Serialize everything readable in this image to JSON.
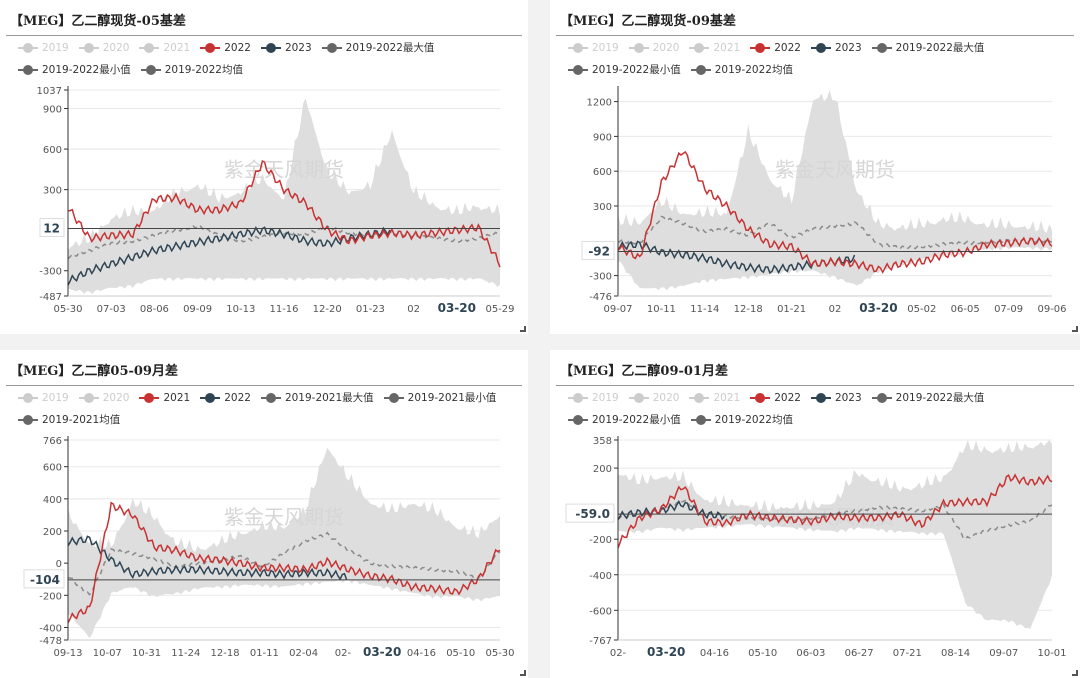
{
  "colors": {
    "y2022": "#c83232",
    "y2023": "#2f4554",
    "mean": "#8a8a8a",
    "band": "#dedede",
    "off": "#cccccc",
    "legend_on": "#666666",
    "grid": "#e8e8e8",
    "axis": "#333333",
    "watermark": "#d6d6d6"
  },
  "watermark": "紫金天风期货",
  "panels": [
    {
      "title": "【MEG】乙二醇现货-05基差",
      "legend": [
        {
          "label": "2019",
          "state": "off"
        },
        {
          "label": "2020",
          "state": "off"
        },
        {
          "label": "2021",
          "state": "off"
        },
        {
          "label": "2022",
          "state": "on",
          "color": "#c83232"
        },
        {
          "label": "2023",
          "state": "on",
          "color": "#2f4554"
        },
        {
          "label": "2019-2022最大值",
          "state": "on",
          "color": "#666666"
        },
        {
          "label": "2019-2022最小值",
          "state": "on",
          "color": "#666666"
        },
        {
          "label": "2019-2022均值",
          "state": "on",
          "color": "#666666"
        }
      ],
      "marker_label": "12",
      "highlight_tick": "03-20"
    },
    {
      "title": "【MEG】乙二醇现货-09基差",
      "legend": [
        {
          "label": "2019",
          "state": "off"
        },
        {
          "label": "2020",
          "state": "off"
        },
        {
          "label": "2021",
          "state": "off"
        },
        {
          "label": "2022",
          "state": "on",
          "color": "#c83232"
        },
        {
          "label": "2023",
          "state": "on",
          "color": "#2f4554"
        },
        {
          "label": "2019-2022最大值",
          "state": "on",
          "color": "#666666"
        },
        {
          "label": "2019-2022最小值",
          "state": "on",
          "color": "#666666"
        },
        {
          "label": "2019-2022均值",
          "state": "on",
          "color": "#666666"
        }
      ],
      "marker_label": "-92",
      "highlight_tick": "03-20"
    },
    {
      "title": "【MEG】乙二醇05-09月差",
      "legend": [
        {
          "label": "2019",
          "state": "off"
        },
        {
          "label": "2020",
          "state": "off"
        },
        {
          "label": "2021",
          "state": "on",
          "color": "#c83232"
        },
        {
          "label": "2022",
          "state": "on",
          "color": "#2f4554"
        },
        {
          "label": "2019-2021最大值",
          "state": "on",
          "color": "#666666"
        },
        {
          "label": "2019-2021最小值",
          "state": "on",
          "color": "#666666"
        },
        {
          "label": "2019-2021均值",
          "state": "on",
          "color": "#666666"
        }
      ],
      "marker_label": "-104",
      "highlight_tick": "03-20"
    },
    {
      "title": "【MEG】乙二醇09-01月差",
      "legend": [
        {
          "label": "2019",
          "state": "off"
        },
        {
          "label": "2020",
          "state": "off"
        },
        {
          "label": "2021",
          "state": "off"
        },
        {
          "label": "2022",
          "state": "on",
          "color": "#c83232"
        },
        {
          "label": "2023",
          "state": "on",
          "color": "#2f4554"
        },
        {
          "label": "2019-2022最大值",
          "state": "on",
          "color": "#666666"
        },
        {
          "label": "2019-2022最小值",
          "state": "on",
          "color": "#666666"
        },
        {
          "label": "2019-2022均值",
          "state": "on",
          "color": "#666666"
        }
      ],
      "marker_label": "-59.0",
      "highlight_tick": "03-20"
    }
  ],
  "chart_data": [
    {
      "type": "line",
      "title": "【MEG】乙二醇现货-05基差",
      "ylim": [
        -487,
        1037
      ],
      "yticks": [
        -487,
        -300,
        300,
        600,
        900,
        1037
      ],
      "xticks": [
        "05-30",
        "07-03",
        "08-06",
        "09-09",
        "10-13",
        "11-16",
        "12-20",
        "01-23",
        "02",
        "03-20",
        "05-29"
      ],
      "marker": {
        "label": "12",
        "value": 12
      },
      "legend_position": "top",
      "grid": true,
      "x": [
        0,
        0.05,
        0.1,
        0.15,
        0.2,
        0.25,
        0.3,
        0.35,
        0.4,
        0.45,
        0.5,
        0.55,
        0.6,
        0.65,
        0.7,
        0.75,
        0.8,
        0.85,
        0.9,
        0.95,
        1.0
      ],
      "series": [
        {
          "name": "2022",
          "values": [
            170,
            -60,
            -40,
            -30,
            230,
            240,
            150,
            150,
            200,
            500,
            300,
            200,
            0,
            -80,
            -40,
            -20,
            -40,
            -20,
            0,
            20,
            -250
          ]
        },
        {
          "name": "2023",
          "values": [
            -380,
            -300,
            -250,
            -200,
            -150,
            -120,
            -90,
            -60,
            -30,
            0,
            -30,
            -80,
            -100,
            -60,
            -30,
            0,
            null,
            null,
            null,
            null,
            null
          ]
        },
        {
          "name": "2019-2022均值",
          "values": [
            -200,
            -150,
            -100,
            -80,
            -40,
            0,
            30,
            -40,
            -80,
            -50,
            -20,
            -30,
            20,
            -20,
            -40,
            -20,
            -40,
            -60,
            -80,
            -60,
            -20
          ]
        },
        {
          "name": "2019-2022最大值",
          "values": [
            -150,
            -100,
            60,
            100,
            120,
            240,
            300,
            200,
            250,
            350,
            200,
            950,
            400,
            250,
            300,
            700,
            250,
            150,
            100,
            150,
            100
          ]
        },
        {
          "name": "2019-2022最小值",
          "values": [
            -430,
            -450,
            -420,
            -400,
            -350,
            -350,
            -350,
            -350,
            -350,
            -350,
            -350,
            -350,
            -350,
            -350,
            -350,
            -350,
            -350,
            -350,
            -350,
            -350,
            -400
          ]
        }
      ]
    },
    {
      "type": "line",
      "title": "【MEG】乙二醇现货-09基差",
      "ylim": [
        -476,
        1300
      ],
      "yticks": [
        -476,
        -300,
        300,
        600,
        900,
        1200
      ],
      "xticks": [
        "09-07",
        "10-11",
        "11-14",
        "12-18",
        "01-21",
        "02",
        "03-20",
        "05-02",
        "06-05",
        "07-09",
        "09-06"
      ],
      "marker": {
        "label": "-92",
        "value": -92
      },
      "legend_position": "top",
      "grid": true,
      "x": [
        0,
        0.05,
        0.1,
        0.15,
        0.2,
        0.25,
        0.3,
        0.35,
        0.4,
        0.45,
        0.5,
        0.55,
        0.6,
        0.65,
        0.7,
        0.75,
        0.8,
        0.85,
        0.9,
        0.95,
        1.0
      ],
      "series": [
        {
          "name": "2022",
          "values": [
            -50,
            -150,
            500,
            780,
            450,
            300,
            100,
            -30,
            -50,
            -200,
            -180,
            -200,
            -250,
            -200,
            -180,
            -120,
            -100,
            -30,
            -20,
            0,
            -20
          ]
        },
        {
          "name": "2023",
          "values": [
            -50,
            -30,
            -100,
            -120,
            -150,
            -200,
            -230,
            -250,
            -230,
            -200,
            -180,
            -150,
            null,
            null,
            null,
            null,
            null,
            null,
            null,
            null,
            null
          ]
        },
        {
          "name": "2019-2022均值",
          "values": [
            0,
            -20,
            200,
            150,
            80,
            100,
            50,
            150,
            30,
            100,
            130,
            150,
            -30,
            -60,
            -50,
            -30,
            -20,
            -10,
            0,
            0,
            0
          ]
        },
        {
          "name": "2019-2022最大值",
          "values": [
            130,
            120,
            300,
            200,
            200,
            200,
            900,
            500,
            300,
            1200,
            1200,
            400,
            100,
            80,
            100,
            150,
            150,
            100,
            100,
            80,
            60
          ]
        },
        {
          "name": "2019-2022最小值",
          "values": [
            -150,
            -400,
            -400,
            -380,
            -330,
            -320,
            -300,
            -280,
            -250,
            -250,
            -300,
            -380,
            -250,
            -200,
            -150,
            -120,
            -80,
            -60,
            -50,
            -50,
            -60
          ]
        }
      ]
    },
    {
      "type": "line",
      "title": "【MEG】乙二醇05-09月差",
      "ylim": [
        -478,
        766
      ],
      "yticks": [
        -478,
        -400,
        -200,
        0,
        200,
        400,
        600,
        766
      ],
      "xticks": [
        "09-13",
        "10-07",
        "10-31",
        "11-24",
        "12-18",
        "01-11",
        "02-04",
        "02-",
        "03-20",
        "04-16",
        "05-10",
        "05-30"
      ],
      "marker": {
        "label": "-104",
        "value": -104
      },
      "legend_position": "top",
      "grid": true,
      "x": [
        0,
        0.05,
        0.1,
        0.15,
        0.2,
        0.25,
        0.3,
        0.35,
        0.4,
        0.45,
        0.5,
        0.55,
        0.6,
        0.65,
        0.7,
        0.75,
        0.8,
        0.85,
        0.9,
        0.95,
        1.0
      ],
      "series": [
        {
          "name": "2021",
          "values": [
            -350,
            -280,
            360,
            300,
            100,
            80,
            30,
            20,
            0,
            -30,
            -30,
            -40,
            10,
            -40,
            -80,
            -100,
            -150,
            -160,
            -180,
            -100,
            100
          ]
        },
        {
          "name": "2022",
          "values": [
            130,
            150,
            20,
            -70,
            -50,
            -40,
            -40,
            -50,
            -60,
            -60,
            -70,
            -60,
            -60,
            -90,
            null,
            null,
            null,
            null,
            null,
            null,
            null
          ]
        },
        {
          "name": "2019-2021均值",
          "values": [
            -80,
            -200,
            80,
            60,
            30,
            -30,
            0,
            20,
            40,
            -20,
            60,
            140,
            180,
            80,
            0,
            -20,
            -30,
            -40,
            -50,
            -100,
            80
          ]
        },
        {
          "name": "2019-2021最大值",
          "values": [
            280,
            100,
            80,
            360,
            260,
            100,
            60,
            100,
            160,
            200,
            200,
            300,
            700,
            500,
            350,
            300,
            350,
            300,
            200,
            150,
            280
          ]
        },
        {
          "name": "2019-2021最小值",
          "values": [
            -300,
            -460,
            -180,
            -140,
            -200,
            -180,
            -150,
            -140,
            -130,
            -130,
            -140,
            -120,
            -110,
            -100,
            -130,
            -150,
            -180,
            -200,
            -200,
            -220,
            -200
          ]
        }
      ]
    },
    {
      "type": "line",
      "title": "【MEG】乙二醇09-01月差",
      "ylim": [
        -767,
        358
      ],
      "yticks": [
        -767,
        -600,
        -400,
        -200,
        200,
        358
      ],
      "xticks": [
        "02-",
        "03-20",
        "04-16",
        "05-10",
        "06-03",
        "06-27",
        "07-21",
        "08-14",
        "09-07",
        "10-01"
      ],
      "marker": {
        "label": "-59.0",
        "value": -59.0
      },
      "legend_position": "top",
      "grid": true,
      "x": [
        0,
        0.05,
        0.1,
        0.15,
        0.2,
        0.25,
        0.3,
        0.35,
        0.4,
        0.45,
        0.5,
        0.55,
        0.6,
        0.65,
        0.7,
        0.75,
        0.8,
        0.85,
        0.9,
        0.95,
        1.0
      ],
      "series": [
        {
          "name": "2022",
          "values": [
            -230,
            -80,
            -30,
            100,
            -100,
            -110,
            -60,
            -80,
            -90,
            -100,
            -70,
            -80,
            -80,
            -60,
            -120,
            0,
            10,
            10,
            150,
            120,
            140
          ]
        },
        {
          "name": "2023",
          "values": [
            -70,
            -50,
            -40,
            0,
            -60,
            -70,
            null,
            null,
            null,
            null,
            null,
            null,
            null,
            null,
            null,
            null,
            null,
            null,
            null,
            null,
            null
          ]
        },
        {
          "name": "2019-2022均值",
          "values": [
            -80,
            -60,
            -40,
            20,
            -60,
            -70,
            -80,
            -90,
            -90,
            -80,
            -60,
            -40,
            -20,
            -30,
            -40,
            -10,
            -200,
            -150,
            -120,
            -100,
            0
          ]
        },
        {
          "name": "2019-2022最大值",
          "values": [
            150,
            100,
            130,
            120,
            0,
            -20,
            -30,
            -50,
            -40,
            -40,
            -10,
            150,
            100,
            60,
            80,
            120,
            300,
            280,
            280,
            300,
            330
          ]
        },
        {
          "name": "2019-2022最小值",
          "values": [
            -150,
            -150,
            -130,
            -140,
            -130,
            -120,
            -110,
            -120,
            -130,
            -140,
            -150,
            -130,
            -140,
            -150,
            -160,
            -160,
            -550,
            -650,
            -650,
            -700,
            -400
          ]
        }
      ]
    }
  ]
}
